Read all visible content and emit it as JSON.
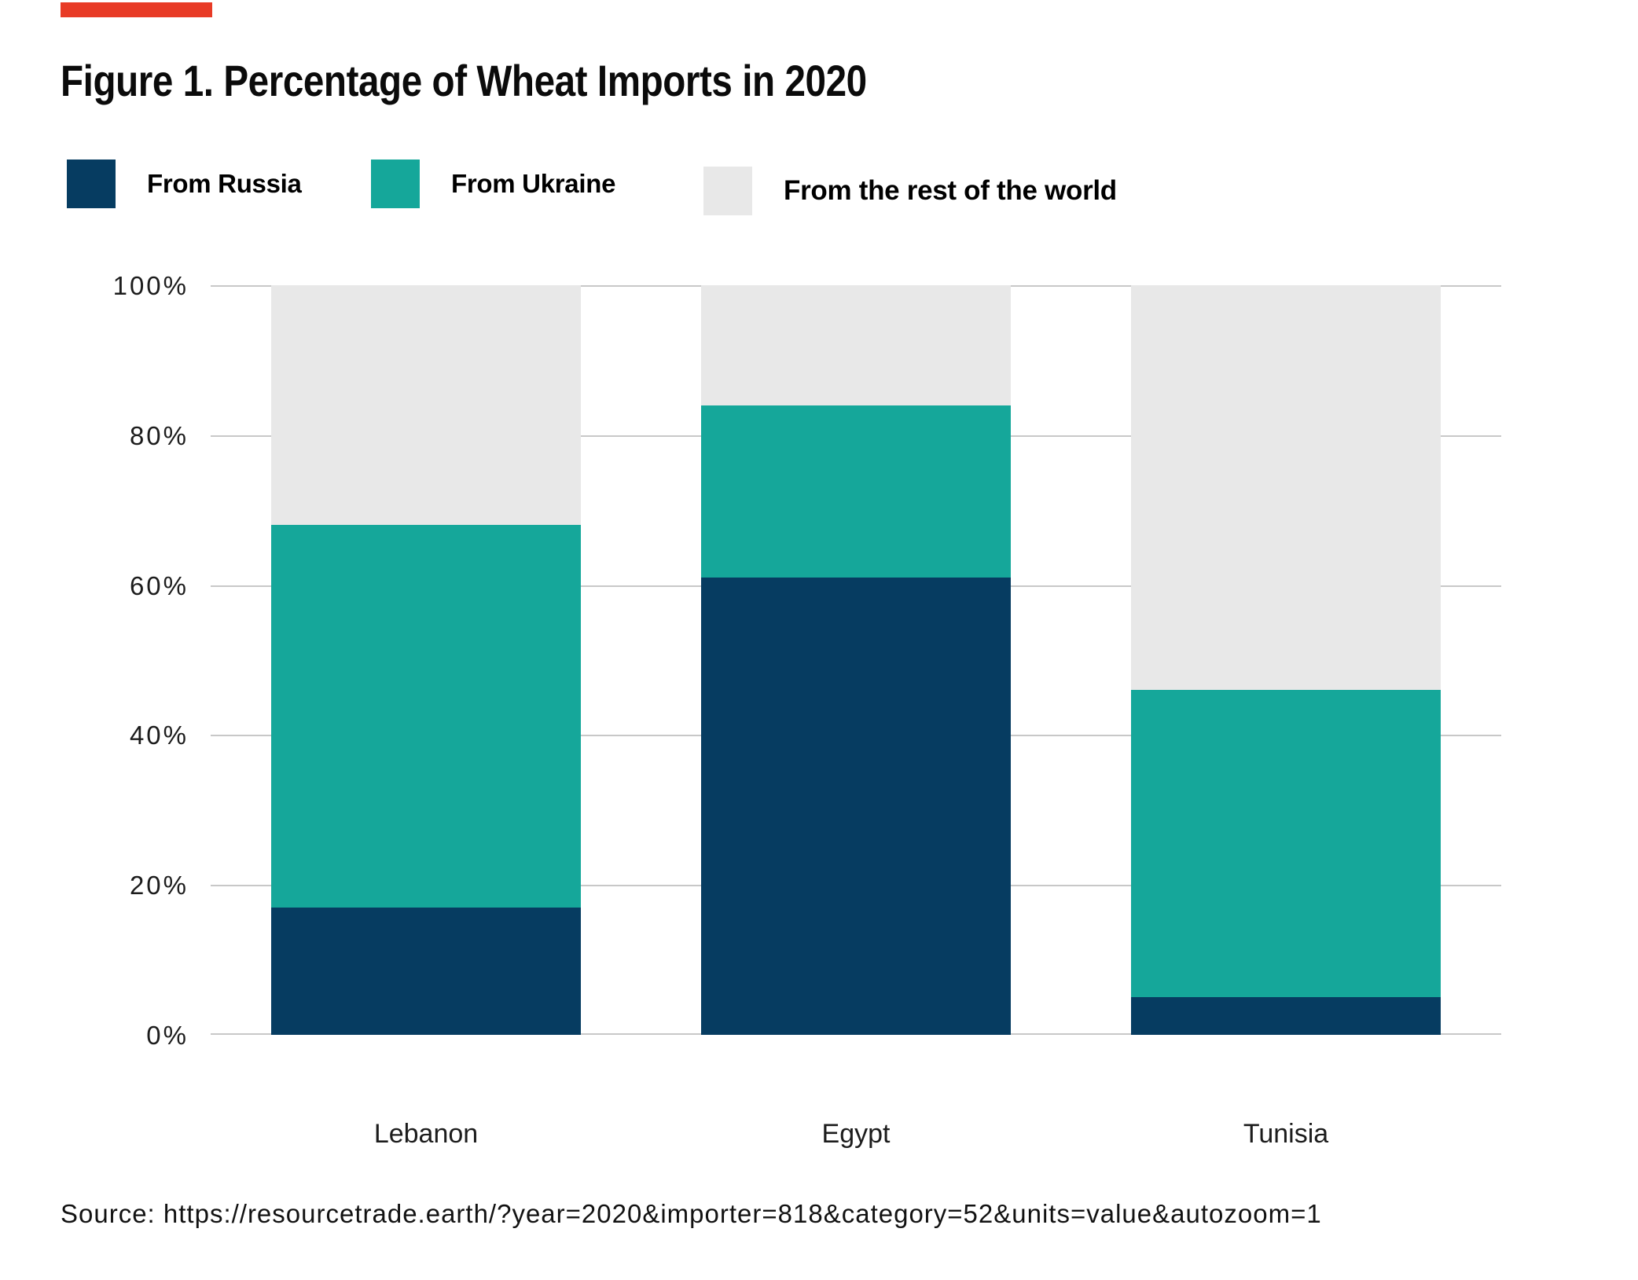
{
  "title": "Figure 1. Percentage of Wheat Imports in 2020",
  "brand_bar": {
    "color": "#e83b26"
  },
  "chart_data": {
    "type": "bar",
    "stacked": true,
    "title": "Figure 1. Percentage of Wheat Imports in 2020",
    "categories": [
      "Lebanon",
      "Egypt",
      "Tunisia"
    ],
    "series": [
      {
        "name": "From Russia",
        "color": "#063c61",
        "values": [
          17,
          61,
          5
        ]
      },
      {
        "name": "From Ukraine",
        "color": "#15a79a",
        "values": [
          51,
          23,
          41
        ]
      },
      {
        "name": "From the rest of the world",
        "color": "#e8e8e8",
        "values": [
          32,
          16,
          54
        ]
      }
    ],
    "unit": "%",
    "ylim": [
      0,
      100
    ],
    "y_tick_percents": [
      100,
      80,
      60,
      40,
      20,
      0
    ],
    "y_tick_labels": [
      "100%",
      "80%",
      "60%",
      "40%",
      "20%",
      "0%"
    ],
    "grid": true,
    "gridline_color": "#c8c8c8",
    "legend_position": "top"
  },
  "source_line": "Source: https://resourcetrade.earth/?year=2020&importer=818&category=52&units=value&autozoom=1"
}
